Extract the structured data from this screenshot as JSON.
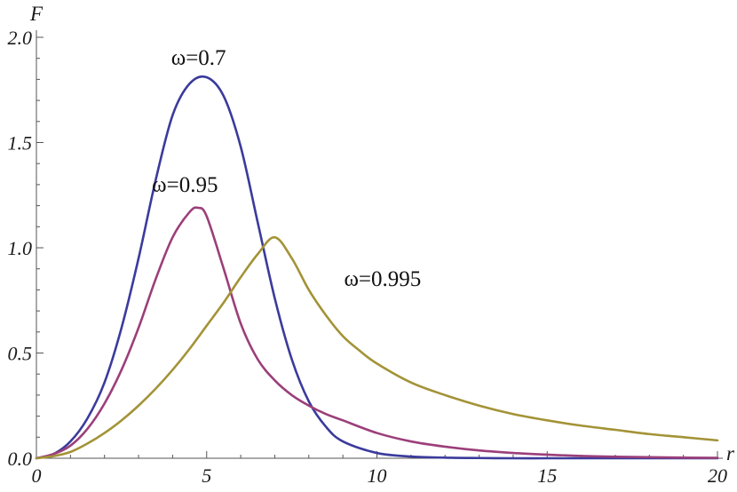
{
  "chart_data": {
    "type": "line",
    "xlabel": "r",
    "ylabel": "F",
    "xlim": [
      0,
      20
    ],
    "ylim": [
      0,
      2.0
    ],
    "grid": false,
    "legend": "none",
    "x_ticks": [
      0,
      5,
      10,
      15,
      20
    ],
    "x_tick_labels": [
      "0",
      "5",
      "10",
      "15",
      "20"
    ],
    "y_ticks": [
      0,
      0.5,
      1.0,
      1.5,
      2.0
    ],
    "y_tick_labels": [
      "0.0",
      "0.5",
      "1.0",
      "1.5",
      "2.0"
    ],
    "series": [
      {
        "name": "ω=0.7",
        "color": "#3b3b9c",
        "x": [
          0,
          0.5,
          1,
          1.5,
          2,
          2.5,
          3,
          3.5,
          4,
          4.5,
          5,
          5.5,
          6,
          6.5,
          7,
          7.5,
          8,
          8.5,
          9,
          10,
          11,
          12,
          13,
          14,
          15,
          16,
          17,
          18,
          19,
          20
        ],
        "y": [
          0,
          0.02,
          0.08,
          0.19,
          0.36,
          0.62,
          0.95,
          1.32,
          1.63,
          1.78,
          1.81,
          1.72,
          1.48,
          1.12,
          0.76,
          0.47,
          0.27,
          0.15,
          0.08,
          0.025,
          0.008,
          0.003,
          0.001,
          0,
          0,
          0,
          0,
          0,
          0,
          0
        ]
      },
      {
        "name": "ω=0.95",
        "color": "#9b3f7a",
        "x": [
          0,
          0.5,
          1,
          1.5,
          2,
          2.5,
          3,
          3.5,
          4,
          4.5,
          4.75,
          5,
          5.5,
          6,
          6.5,
          7,
          7.5,
          8,
          8.5,
          9,
          10,
          11,
          12,
          13,
          14,
          15,
          16,
          17,
          18,
          19,
          20
        ],
        "y": [
          0,
          0.02,
          0.06,
          0.14,
          0.26,
          0.42,
          0.62,
          0.85,
          1.05,
          1.17,
          1.19,
          1.15,
          0.9,
          0.64,
          0.47,
          0.37,
          0.3,
          0.25,
          0.21,
          0.18,
          0.12,
          0.08,
          0.055,
          0.037,
          0.025,
          0.017,
          0.011,
          0.007,
          0.005,
          0.003,
          0.002
        ]
      },
      {
        "name": "ω=0.995",
        "color": "#a39337",
        "x": [
          0,
          0.5,
          1,
          1.5,
          2,
          2.5,
          3,
          3.5,
          4,
          4.5,
          5,
          5.5,
          6,
          6.5,
          7,
          7.5,
          8,
          8.5,
          9,
          9.5,
          10,
          11,
          12,
          13,
          14,
          15,
          16,
          17,
          18,
          19,
          20
        ],
        "y": [
          0,
          0.01,
          0.03,
          0.07,
          0.12,
          0.18,
          0.25,
          0.33,
          0.42,
          0.52,
          0.63,
          0.74,
          0.86,
          0.97,
          1.05,
          0.95,
          0.8,
          0.68,
          0.58,
          0.51,
          0.45,
          0.36,
          0.3,
          0.25,
          0.21,
          0.18,
          0.155,
          0.135,
          0.115,
          0.1,
          0.085
        ]
      }
    ],
    "annotations": [
      {
        "text": "ω=0.7",
        "series": 0
      },
      {
        "text": "ω=0.95",
        "series": 1
      },
      {
        "text": "ω=0.995",
        "series": 2
      }
    ]
  }
}
